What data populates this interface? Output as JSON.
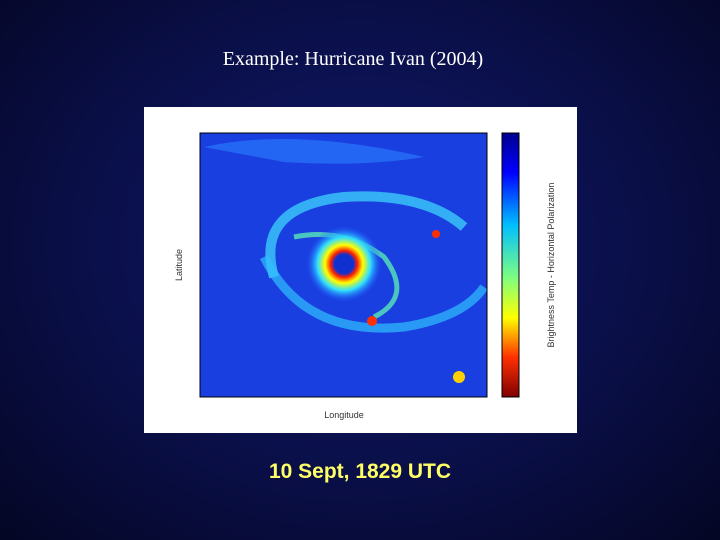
{
  "slide": {
    "title": "Example: Hurricane Ivan (2004)",
    "caption": "10 Sept, 1829 UTC"
  },
  "figure": {
    "y_label": "Latitude",
    "x_label": "Longitude",
    "colorbar_label": "Brightness Temp - Horizontal Polarization"
  }
}
